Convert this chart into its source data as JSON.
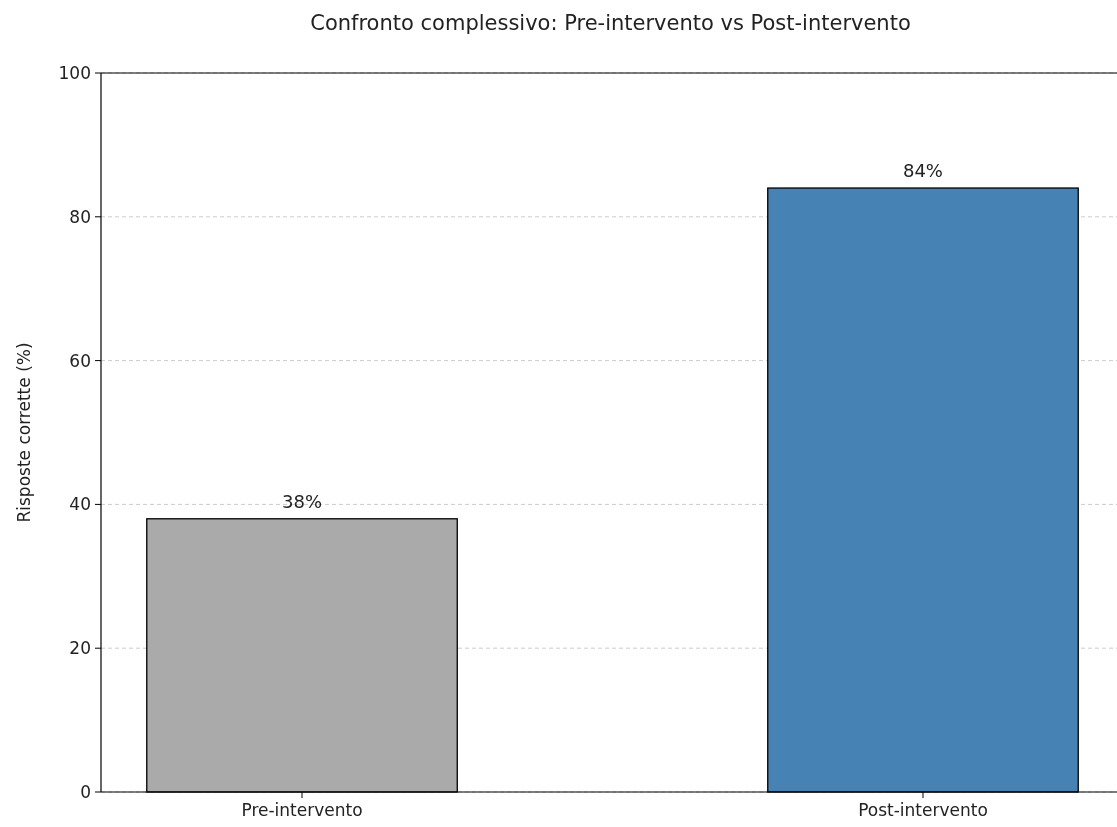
{
  "chart_data": {
    "type": "bar",
    "title": "Confronto complessivo: Pre-intervento vs Post-intervento",
    "ylabel": "Risposte corrette (%)",
    "categories": [
      "Pre-intervento",
      "Post-intervento"
    ],
    "values": [
      38,
      84
    ],
    "colors": [
      "#aaaaaa",
      "#4682b4"
    ],
    "value_labels": [
      "38%",
      "84%"
    ],
    "ylim": [
      0,
      100
    ],
    "yticks": [
      0,
      20,
      40,
      60,
      80,
      100
    ],
    "grid": "y"
  }
}
